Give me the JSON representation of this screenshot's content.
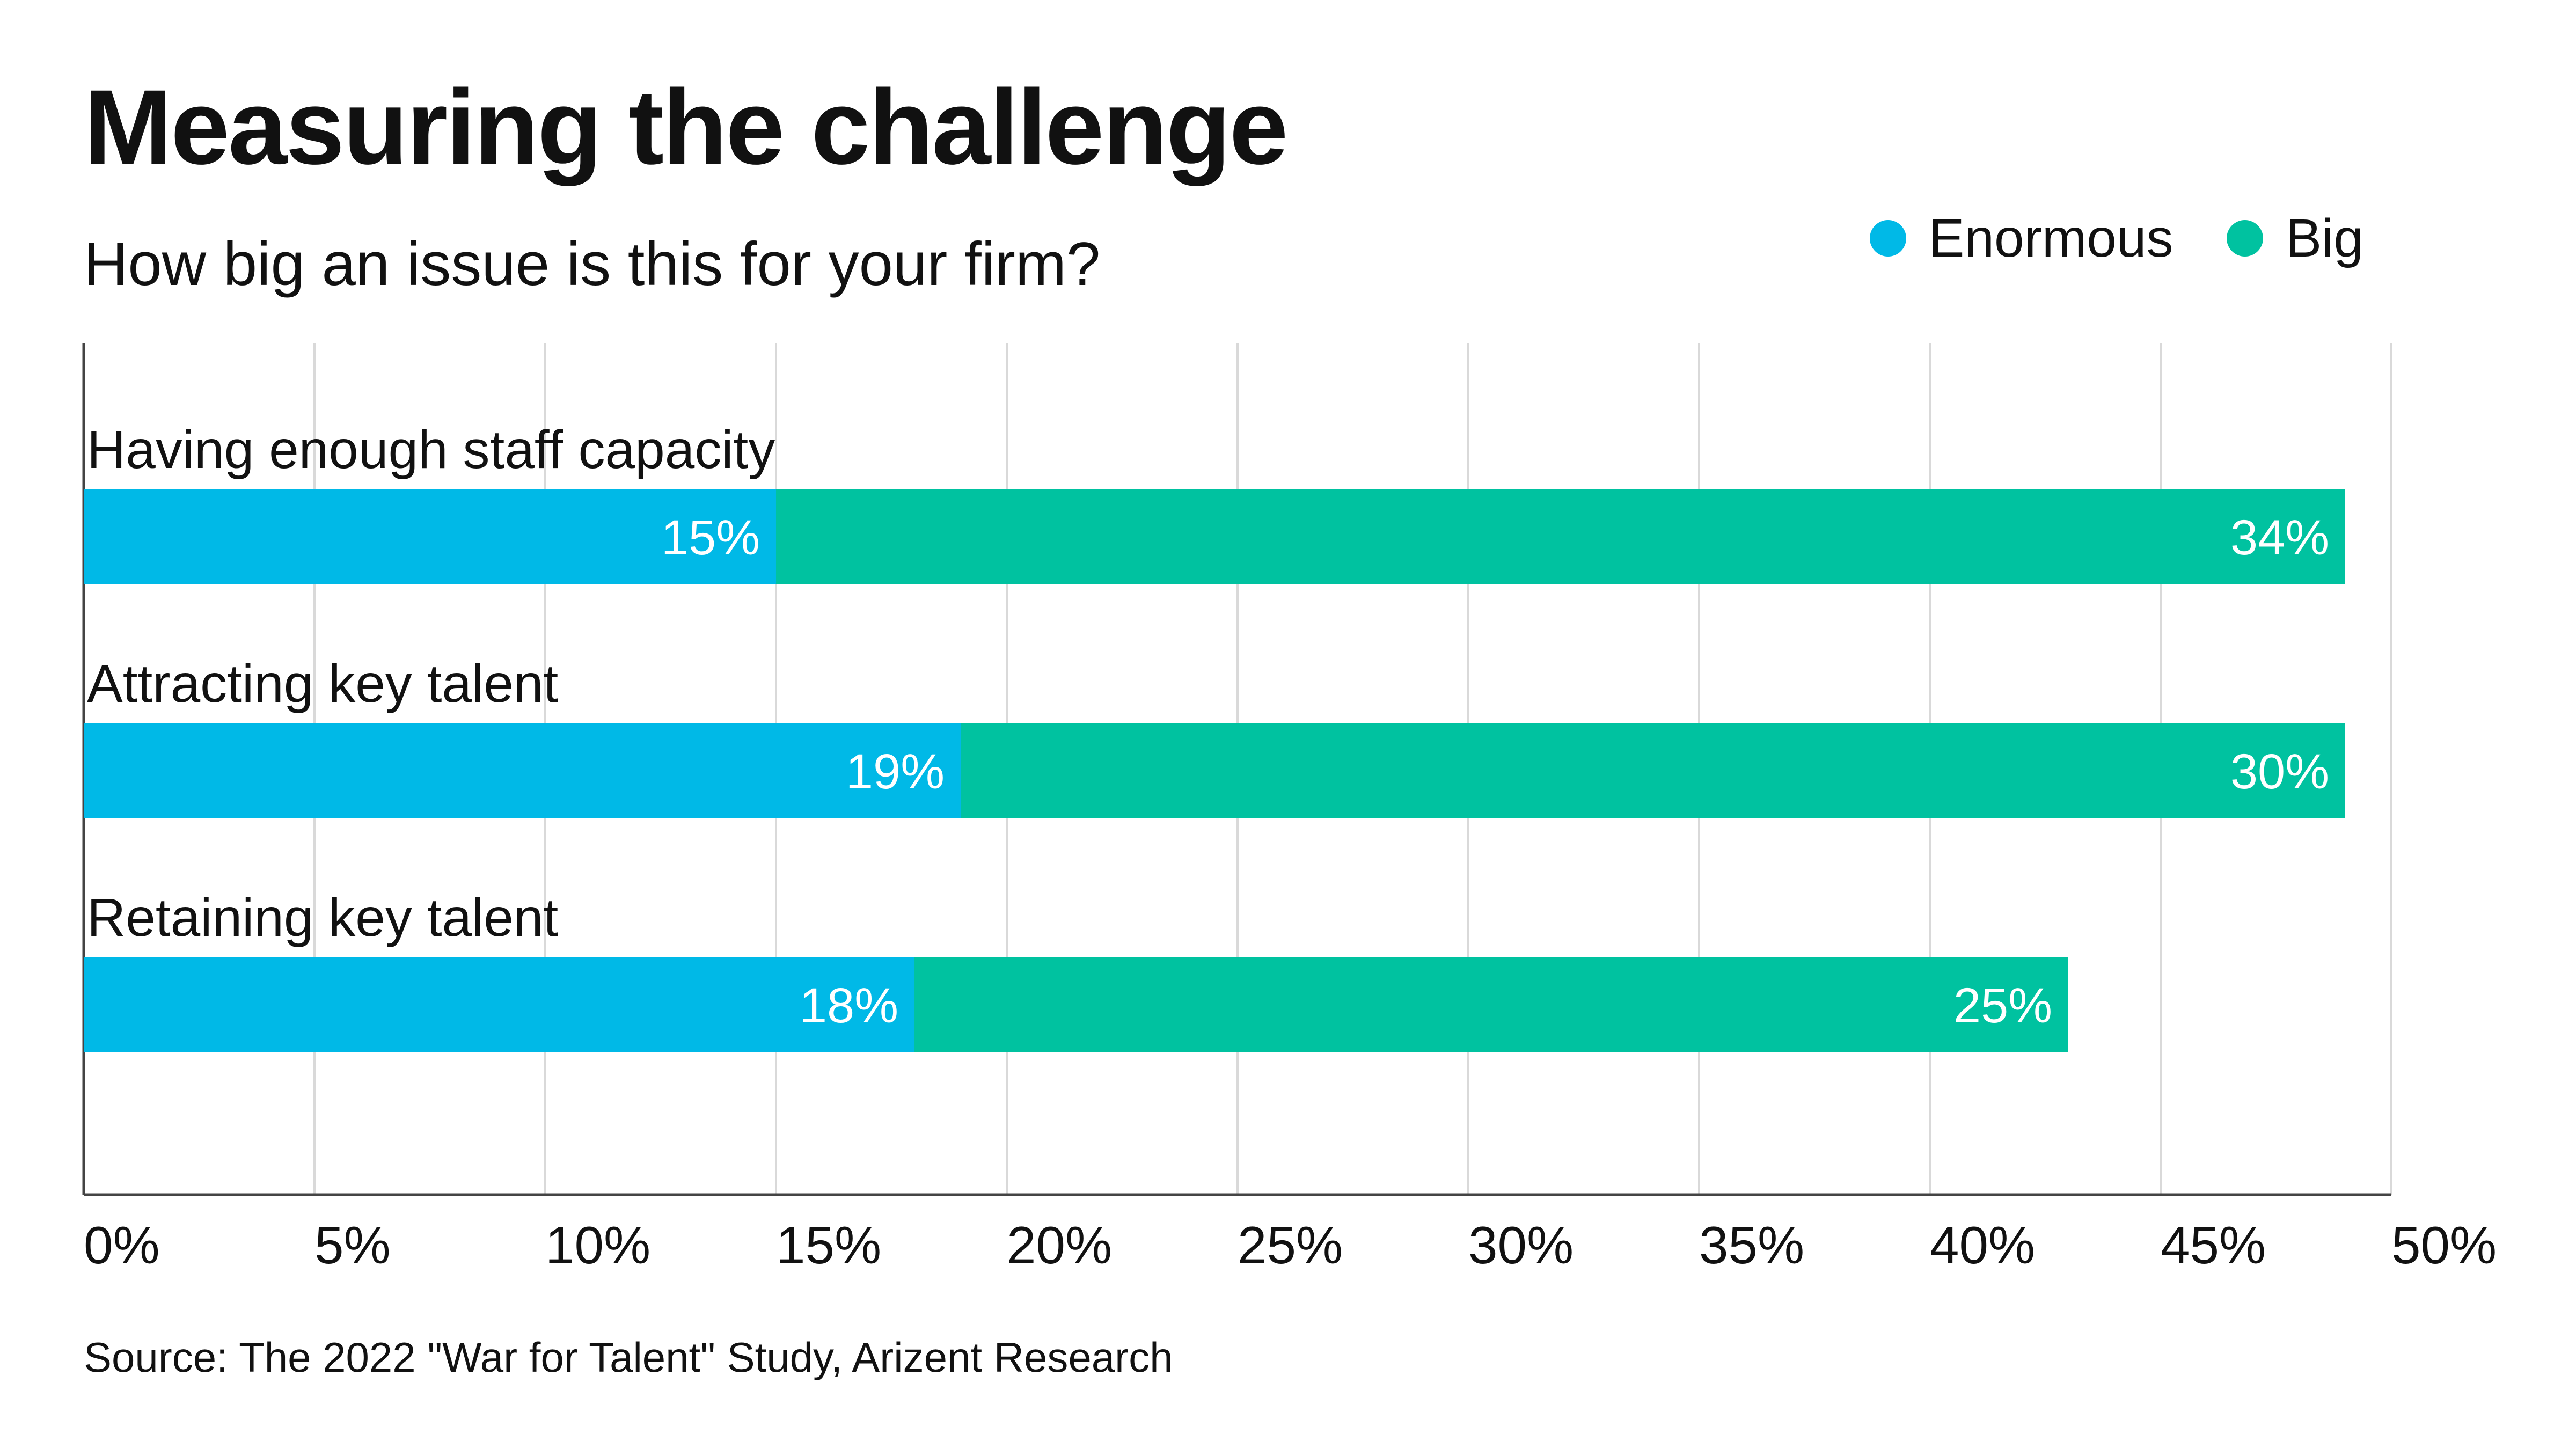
{
  "title": "Measuring the challenge",
  "subtitle": "How big an issue is this for your firm?",
  "source": "Source: The 2022 \"War for Talent\" Study, Arizent Research",
  "legend": [
    {
      "label": "Enormous",
      "color": "#00b9e7"
    },
    {
      "label": "Big",
      "color": "#00c2a0"
    }
  ],
  "chart_data": {
    "type": "bar",
    "orientation": "horizontal",
    "stacked": true,
    "categories": [
      "Having enough staff capacity",
      "Attracting key talent",
      "Retaining key talent"
    ],
    "series": [
      {
        "name": "Enormous",
        "color": "#00b9e7",
        "values": [
          15,
          19,
          18
        ],
        "labels": [
          "15%",
          "19%",
          "18%"
        ]
      },
      {
        "name": "Big",
        "color": "#00c2a0",
        "values": [
          34,
          30,
          25
        ],
        "labels": [
          "34%",
          "30%",
          "25%"
        ]
      }
    ],
    "xlim": [
      0,
      50
    ],
    "xticks": [
      0,
      5,
      10,
      15,
      20,
      25,
      30,
      35,
      40,
      45,
      50
    ],
    "xtick_labels": [
      "0%",
      "5%",
      "10%",
      "15%",
      "20%",
      "25%",
      "30%",
      "35%",
      "40%",
      "45%",
      "50%"
    ],
    "grid": true,
    "legend_position": "top-right"
  }
}
